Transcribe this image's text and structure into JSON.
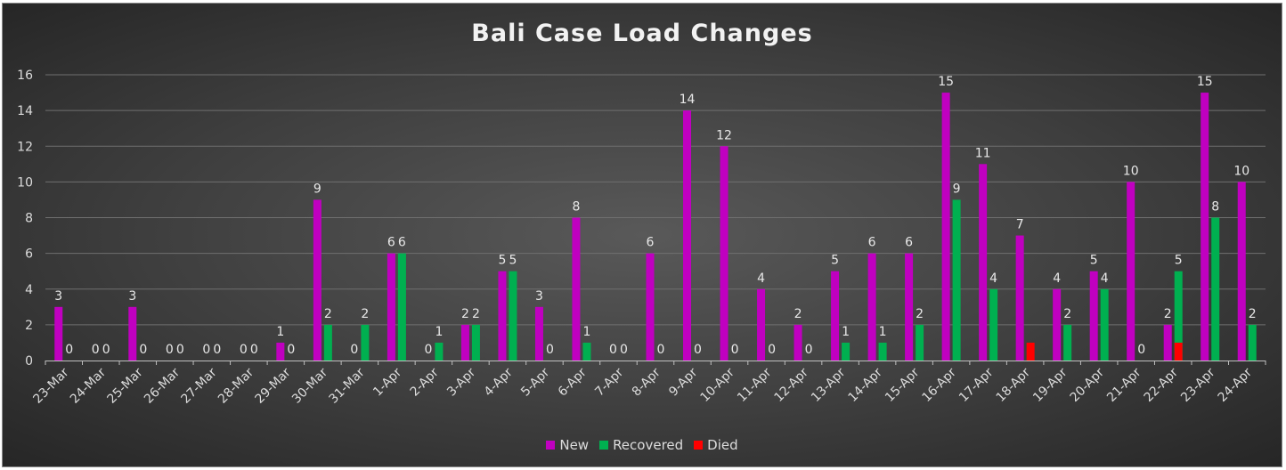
{
  "chart_data": {
    "type": "bar",
    "title": "Bali Case Load Changes",
    "xlabel": "",
    "ylabel": "",
    "ylim": [
      0,
      16
    ],
    "yticks": [
      0,
      2,
      4,
      6,
      8,
      10,
      12,
      14,
      16
    ],
    "grid": true,
    "legend_position": "bottom",
    "categories": [
      "23-Mar",
      "24-Mar",
      "25-Mar",
      "26-Mar",
      "27-Mar",
      "28-Mar",
      "29-Mar",
      "30-Mar",
      "31-Mar",
      "1-Apr",
      "2-Apr",
      "3-Apr",
      "4-Apr",
      "5-Apr",
      "6-Apr",
      "7-Apr",
      "8-Apr",
      "9-Apr",
      "10-Apr",
      "11-Apr",
      "12-Apr",
      "13-Apr",
      "14-Apr",
      "15-Apr",
      "16-Apr",
      "17-Apr",
      "18-Apr",
      "19-Apr",
      "20-Apr",
      "21-Apr",
      "22-Apr",
      "23-Apr",
      "24-Apr"
    ],
    "series": [
      {
        "name": "New",
        "color": "#c000c0",
        "values": [
          3,
          0,
          3,
          0,
          0,
          0,
          1,
          9,
          0,
          6,
          0,
          2,
          5,
          3,
          8,
          0,
          6,
          14,
          12,
          4,
          2,
          5,
          6,
          6,
          15,
          11,
          7,
          4,
          5,
          10,
          2,
          15,
          10
        ]
      },
      {
        "name": "Recovered",
        "color": "#00b050",
        "values": [
          0,
          0,
          0,
          0,
          0,
          0,
          0,
          2,
          2,
          6,
          1,
          2,
          5,
          0,
          1,
          0,
          0,
          0,
          0,
          0,
          0,
          1,
          1,
          2,
          9,
          4,
          0,
          2,
          4,
          0,
          5,
          8,
          2
        ]
      },
      {
        "name": "Died",
        "color": "#ff0000",
        "values": [
          null,
          null,
          null,
          null,
          null,
          null,
          null,
          null,
          null,
          null,
          null,
          null,
          null,
          null,
          null,
          null,
          null,
          null,
          null,
          null,
          null,
          null,
          null,
          null,
          null,
          null,
          1,
          null,
          null,
          null,
          1,
          null,
          null
        ]
      }
    ]
  }
}
